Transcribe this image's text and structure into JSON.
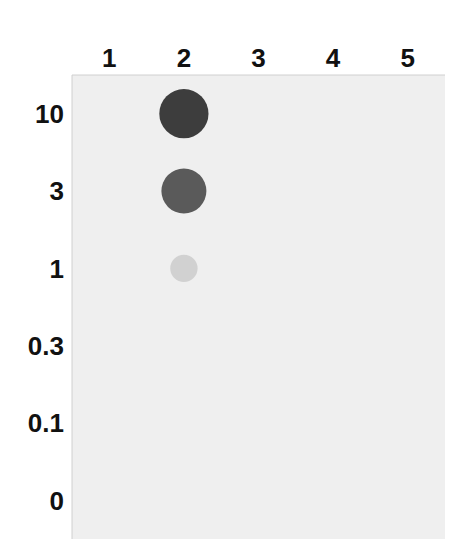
{
  "chart_data": {
    "type": "heatmap",
    "x": [
      "1",
      "2",
      "3",
      "4",
      "5"
    ],
    "y": [
      "10",
      "3",
      "1",
      "0.3",
      "0.1",
      "0"
    ],
    "cells": [
      [
        0,
        0.9,
        0,
        0,
        0
      ],
      [
        0,
        0.75,
        0,
        0,
        0
      ],
      [
        0,
        0.12,
        0,
        0,
        0
      ],
      [
        0,
        0,
        0,
        0,
        0
      ],
      [
        0,
        0,
        0,
        0,
        0
      ],
      [
        0,
        0,
        0,
        0,
        0
      ]
    ]
  }
}
